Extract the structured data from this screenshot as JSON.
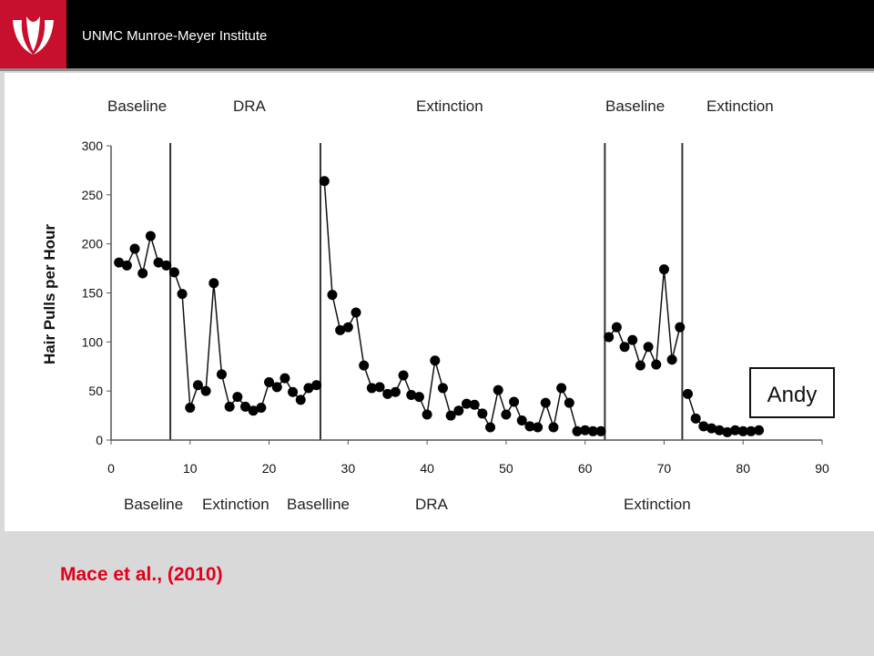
{
  "header": {
    "title": "UNMC Munroe-Meyer Institute",
    "logo_icon": "unmc-logo-icon",
    "brand_color": "#c8102e"
  },
  "citation": "Mace et al., (2010)",
  "chart_data": {
    "type": "line",
    "ylabel": "Hair Pulls per Hour",
    "xlabel": "",
    "xlim": [
      0,
      90
    ],
    "ylim": [
      0,
      300
    ],
    "x_ticks": [
      "0",
      "10",
      "20",
      "30",
      "40",
      "50",
      "60",
      "70",
      "80",
      "90"
    ],
    "y_ticks": [
      "0",
      "50",
      "100",
      "150",
      "200",
      "250",
      "300"
    ],
    "grid": false,
    "legend_box": "Andy",
    "phase_change_lines": [
      7.5,
      26.5,
      62.5,
      72.3
    ],
    "top_phase_labels": [
      "Baseline",
      "DRA",
      "Extinction",
      "Baseline",
      "Extinction"
    ],
    "bottom_phase_labels": [
      "Baseline",
      "Extinction",
      "Baselline",
      "DRA",
      "Extinction"
    ],
    "series": [
      {
        "values": [
          [
            1,
            181
          ],
          [
            2,
            178
          ],
          [
            3,
            195
          ],
          [
            4,
            170
          ],
          [
            5,
            208
          ],
          [
            6,
            181
          ],
          [
            7,
            178
          ],
          [
            8,
            171
          ],
          [
            9,
            149
          ],
          [
            10,
            33
          ],
          [
            11,
            56
          ],
          [
            12,
            50
          ],
          [
            13,
            160
          ],
          [
            14,
            67
          ],
          [
            15,
            34
          ],
          [
            16,
            44
          ],
          [
            17,
            34
          ],
          [
            18,
            30
          ],
          [
            19,
            33
          ],
          [
            20,
            59
          ],
          [
            21,
            54
          ],
          [
            22,
            63
          ],
          [
            23,
            49
          ],
          [
            24,
            41
          ],
          [
            25,
            53
          ],
          [
            26,
            56
          ],
          [
            27,
            264
          ],
          [
            28,
            148
          ],
          [
            29,
            112
          ],
          [
            30,
            115
          ],
          [
            31,
            130
          ],
          [
            32,
            76
          ],
          [
            33,
            53
          ],
          [
            34,
            54
          ],
          [
            35,
            47
          ],
          [
            36,
            49
          ],
          [
            37,
            66
          ],
          [
            38,
            46
          ],
          [
            39,
            44
          ],
          [
            40,
            26
          ],
          [
            41,
            81
          ],
          [
            42,
            53
          ],
          [
            43,
            25
          ],
          [
            44,
            30
          ],
          [
            45,
            37
          ],
          [
            46,
            36
          ],
          [
            47,
            27
          ],
          [
            48,
            13
          ],
          [
            49,
            51
          ],
          [
            50,
            26
          ],
          [
            51,
            39
          ],
          [
            52,
            20
          ],
          [
            53,
            14
          ],
          [
            54,
            13
          ],
          [
            55,
            38
          ],
          [
            56,
            13
          ],
          [
            57,
            53
          ],
          [
            58,
            38
          ],
          [
            59,
            9
          ],
          [
            60,
            10
          ],
          [
            61,
            9
          ],
          [
            62,
            9
          ],
          [
            63,
            105
          ],
          [
            64,
            115
          ],
          [
            65,
            95
          ],
          [
            66,
            102
          ],
          [
            67,
            76
          ],
          [
            68,
            95
          ],
          [
            69,
            77
          ],
          [
            70,
            174
          ],
          [
            71,
            82
          ],
          [
            72,
            115
          ],
          [
            73,
            47
          ],
          [
            74,
            22
          ],
          [
            75,
            14
          ],
          [
            76,
            12
          ],
          [
            77,
            10
          ],
          [
            78,
            8
          ],
          [
            79,
            10
          ],
          [
            80,
            9
          ],
          [
            81,
            9
          ],
          [
            82,
            10
          ]
        ]
      }
    ]
  }
}
